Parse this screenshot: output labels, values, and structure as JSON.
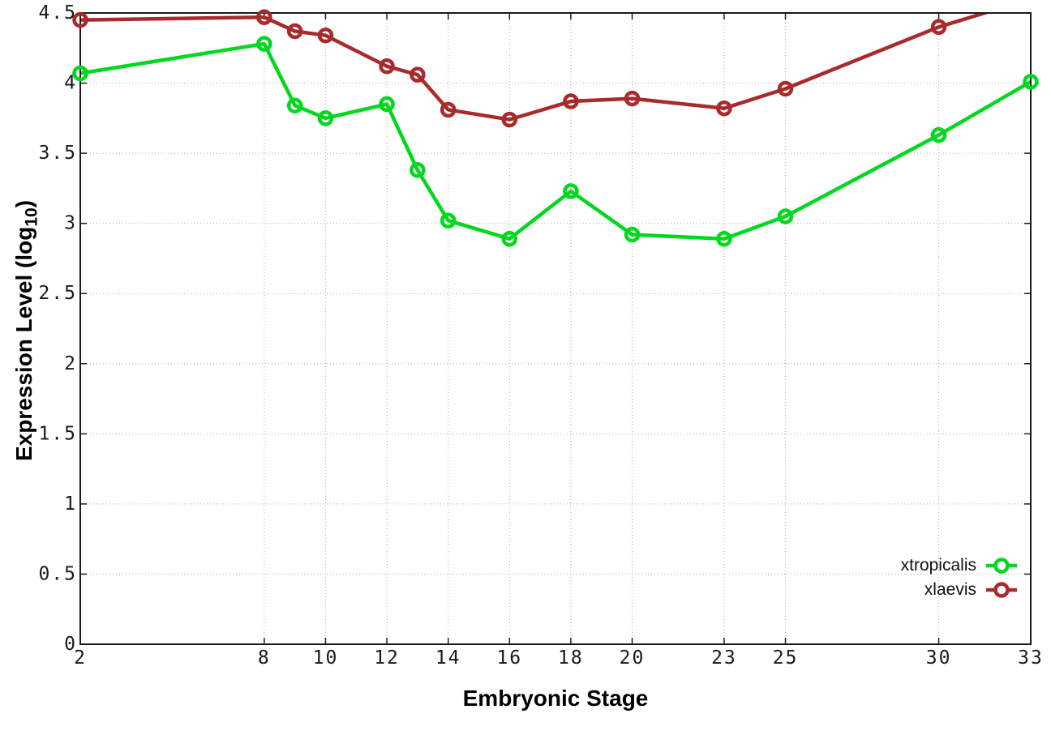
{
  "chart_data": {
    "type": "line",
    "title": "",
    "xlabel": "Embryonic Stage",
    "ylabel": "Expression Level (log10)",
    "ylabel_pre": "Expression Level (log",
    "ylabel_sub": "10",
    "ylabel_post": ")",
    "x": [
      2,
      8,
      9,
      10,
      12,
      13,
      14,
      16,
      18,
      20,
      23,
      25,
      30,
      33
    ],
    "xticks": [
      2,
      8,
      10,
      12,
      14,
      16,
      18,
      20,
      23,
      25,
      30,
      33
    ],
    "yticks": [
      0,
      0.5,
      1,
      1.5,
      2,
      2.5,
      3,
      3.5,
      4,
      4.5
    ],
    "xlim": [
      2,
      33
    ],
    "ylim": [
      0,
      4.5
    ],
    "grid": true,
    "legend_position": "inside bottom-right",
    "marker": "open-circle",
    "axis_color": "#1a1a1a",
    "grid_color": "#aaaaaa",
    "series": [
      {
        "name": "xtropicalis",
        "color": "#00d81e",
        "values": [
          4.07,
          4.28,
          3.84,
          3.75,
          3.85,
          3.38,
          3.02,
          2.89,
          3.23,
          2.92,
          2.89,
          3.05,
          3.63,
          4.01
        ]
      },
      {
        "name": "xlaevis",
        "color": "#a82a2a",
        "values": [
          4.45,
          4.47,
          4.37,
          4.34,
          4.12,
          4.06,
          3.81,
          3.74,
          3.87,
          3.89,
          3.82,
          3.96,
          4.4,
          4.6
        ]
      }
    ]
  }
}
